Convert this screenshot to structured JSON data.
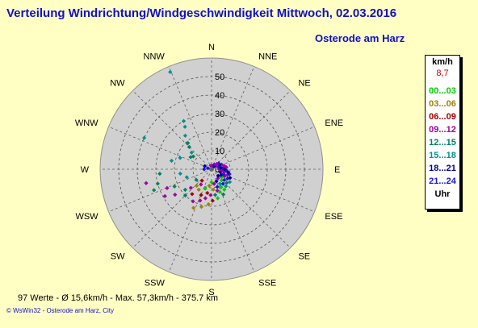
{
  "title": "Verteilung Windrichtung/Windgeschwindigkeit  Mittwoch, 02.03.2016",
  "subtitle": "Osterode am Harz",
  "legend": {
    "unit": "km/h",
    "current": "8,7",
    "bands": [
      {
        "label": "00...03",
        "color": "#00cc00"
      },
      {
        "label": "03...06",
        "color": "#a08000"
      },
      {
        "label": "06...09",
        "color": "#a00000"
      },
      {
        "label": "09...12",
        "color": "#a000a0"
      },
      {
        "label": "12...15",
        "color": "#008060"
      },
      {
        "label": "15...18",
        "color": "#009090"
      },
      {
        "label": "18...21",
        "color": "#000090"
      },
      {
        "label": "21...24",
        "color": "#1818d0"
      }
    ],
    "footer": "Uhr"
  },
  "stats": "97 Werte   -   Ø 15,6km/h  -  Max. 57,3km/h   -   375.7 km",
  "credit": "© WsWin32  -  Osterode am Harz, City",
  "chart_data": {
    "type": "scatter",
    "coordinate_system": "polar",
    "radial_ticks": [
      "0",
      "10",
      "20",
      "30",
      "40",
      "50"
    ],
    "radial_range": [
      0,
      60
    ],
    "directions": [
      "N",
      "NNE",
      "NE",
      "ENE",
      "E",
      "ESE",
      "SE",
      "SSE",
      "S",
      "SSW",
      "SW",
      "WSW",
      "W",
      "WNW",
      "NW",
      "NNW"
    ],
    "grid": true,
    "legend_position": "right",
    "points": [
      {
        "dir": 337,
        "speed": 57,
        "band": 5
      },
      {
        "dir": 330,
        "speed": 30,
        "band": 5
      },
      {
        "dir": 328,
        "speed": 27,
        "band": 5
      },
      {
        "dir": 322,
        "speed": 23,
        "band": 5
      },
      {
        "dir": 318,
        "speed": 19,
        "band": 4
      },
      {
        "dir": 315,
        "speed": 17,
        "band": 4
      },
      {
        "dir": 310,
        "speed": 14,
        "band": 5
      },
      {
        "dir": 305,
        "speed": 12,
        "band": 4
      },
      {
        "dir": 300,
        "speed": 13,
        "band": 4
      },
      {
        "dir": 295,
        "speed": 40,
        "band": 5
      },
      {
        "dir": 290,
        "speed": 18,
        "band": 5
      },
      {
        "dir": 282,
        "speed": 22,
        "band": 5
      },
      {
        "dir": 265,
        "speed": 28,
        "band": 4
      },
      {
        "dir": 258,
        "speed": 36,
        "band": 3
      },
      {
        "dir": 255,
        "speed": 30,
        "band": 4
      },
      {
        "dir": 250,
        "speed": 33,
        "band": 4
      },
      {
        "dir": 247,
        "speed": 26,
        "band": 3
      },
      {
        "dir": 245,
        "speed": 22,
        "band": 4
      },
      {
        "dir": 240,
        "speed": 29,
        "band": 3
      },
      {
        "dir": 235,
        "speed": 24,
        "band": 3
      },
      {
        "dir": 232,
        "speed": 18,
        "band": 4
      },
      {
        "dir": 228,
        "speed": 15,
        "band": 3
      },
      {
        "dir": 225,
        "speed": 20,
        "band": 4
      },
      {
        "dir": 222,
        "speed": 12,
        "band": 1
      },
      {
        "dir": 218,
        "speed": 17,
        "band": 2
      },
      {
        "dir": 215,
        "speed": 10,
        "band": 3
      },
      {
        "dir": 212,
        "speed": 13,
        "band": 1
      },
      {
        "dir": 210,
        "speed": 20,
        "band": 3
      },
      {
        "dir": 205,
        "speed": 23,
        "band": 1
      },
      {
        "dir": 202,
        "speed": 15,
        "band": 2
      },
      {
        "dir": 200,
        "speed": 18,
        "band": 3
      },
      {
        "dir": 198,
        "speed": 11,
        "band": 0
      },
      {
        "dir": 195,
        "speed": 21,
        "band": 1
      },
      {
        "dir": 192,
        "speed": 16,
        "band": 3
      },
      {
        "dir": 190,
        "speed": 13,
        "band": 2
      },
      {
        "dir": 188,
        "speed": 9,
        "band": 1
      },
      {
        "dir": 185,
        "speed": 19,
        "band": 1
      },
      {
        "dir": 182,
        "speed": 14,
        "band": 3
      },
      {
        "dir": 180,
        "speed": 7,
        "band": 0
      },
      {
        "dir": 178,
        "speed": 17,
        "band": 2
      },
      {
        "dir": 175,
        "speed": 11,
        "band": 1
      },
      {
        "dir": 172,
        "speed": 14,
        "band": 4
      },
      {
        "dir": 170,
        "speed": 8,
        "band": 3
      },
      {
        "dir": 168,
        "speed": 16,
        "band": 0
      },
      {
        "dir": 165,
        "speed": 12,
        "band": 3
      },
      {
        "dir": 162,
        "speed": 10,
        "band": 7
      },
      {
        "dir": 160,
        "speed": 13,
        "band": 0
      },
      {
        "dir": 158,
        "speed": 7,
        "band": 6
      },
      {
        "dir": 155,
        "speed": 15,
        "band": 4
      },
      {
        "dir": 152,
        "speed": 11,
        "band": 0
      },
      {
        "dir": 150,
        "speed": 9,
        "band": 5
      },
      {
        "dir": 148,
        "speed": 13,
        "band": 0
      },
      {
        "dir": 145,
        "speed": 6,
        "band": 3
      },
      {
        "dir": 142,
        "speed": 10,
        "band": 7
      },
      {
        "dir": 140,
        "speed": 12,
        "band": 5
      },
      {
        "dir": 138,
        "speed": 8,
        "band": 0
      },
      {
        "dir": 135,
        "speed": 5,
        "band": 6
      },
      {
        "dir": 132,
        "speed": 11,
        "band": 4
      },
      {
        "dir": 130,
        "speed": 9,
        "band": 7
      },
      {
        "dir": 128,
        "speed": 7,
        "band": 0
      },
      {
        "dir": 125,
        "speed": 12,
        "band": 5
      },
      {
        "dir": 122,
        "speed": 6,
        "band": 6
      },
      {
        "dir": 120,
        "speed": 10,
        "band": 7
      },
      {
        "dir": 118,
        "speed": 8,
        "band": 3
      },
      {
        "dir": 115,
        "speed": 11,
        "band": 6
      },
      {
        "dir": 112,
        "speed": 7,
        "band": 7
      },
      {
        "dir": 110,
        "speed": 9,
        "band": 3
      },
      {
        "dir": 108,
        "speed": 5,
        "band": 6
      },
      {
        "dir": 105,
        "speed": 10,
        "band": 7
      },
      {
        "dir": 102,
        "speed": 7,
        "band": 3
      },
      {
        "dir": 100,
        "speed": 9,
        "band": 6
      },
      {
        "dir": 98,
        "speed": 6,
        "band": 3
      },
      {
        "dir": 95,
        "speed": 8,
        "band": 7
      },
      {
        "dir": 92,
        "speed": 5,
        "band": 3
      },
      {
        "dir": 90,
        "speed": 7,
        "band": 6
      },
      {
        "dir": 88,
        "speed": 4,
        "band": 3
      },
      {
        "dir": 85,
        "speed": 6,
        "band": 7
      },
      {
        "dir": 82,
        "speed": 8,
        "band": 3
      },
      {
        "dir": 80,
        "speed": 5,
        "band": 6
      },
      {
        "dir": 75,
        "speed": 7,
        "band": 3
      },
      {
        "dir": 70,
        "speed": 4,
        "band": 7
      },
      {
        "dir": 65,
        "speed": 6,
        "band": 3
      },
      {
        "dir": 60,
        "speed": 5,
        "band": 6
      },
      {
        "dir": 55,
        "speed": 3,
        "band": 3
      },
      {
        "dir": 50,
        "speed": 5,
        "band": 7
      },
      {
        "dir": 45,
        "speed": 4,
        "band": 3
      },
      {
        "dir": 40,
        "speed": 2,
        "band": 6
      },
      {
        "dir": 30,
        "speed": 3,
        "band": 3
      },
      {
        "dir": 20,
        "speed": 2,
        "band": 7
      },
      {
        "dir": 350,
        "speed": 2,
        "band": 3
      },
      {
        "dir": 295,
        "speed": 4,
        "band": 6
      },
      {
        "dir": 285,
        "speed": 2,
        "band": 7
      },
      {
        "dir": 270,
        "speed": 4,
        "band": 7
      },
      {
        "dir": 262,
        "speed": 17,
        "band": 5
      },
      {
        "dir": 252,
        "speed": 14,
        "band": 5
      },
      {
        "dir": 235,
        "speed": 10,
        "band": 4
      },
      {
        "dir": 220,
        "speed": 8,
        "band": 2
      }
    ]
  }
}
